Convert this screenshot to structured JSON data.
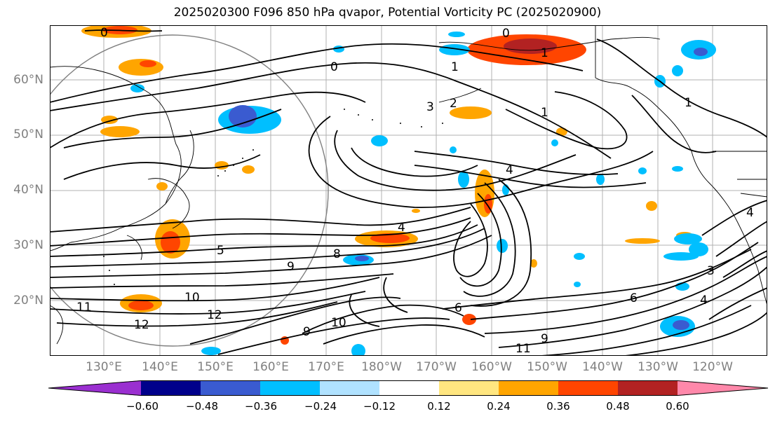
{
  "title": "2025020300 F096 850 hPa qvapor, Potential Vorticity PC (2025020900)",
  "lat_labels": [
    "60°N",
    "50°N",
    "40°N",
    "30°N",
    "20°N"
  ],
  "lon_labels": [
    "130°E",
    "140°E",
    "150°E",
    "160°E",
    "170°E",
    "180°W",
    "170°W",
    "160°W",
    "150°W",
    "140°W",
    "130°W",
    "120°W"
  ],
  "colorbar": {
    "ticks": [
      "−0.60",
      "−0.48",
      "−0.36",
      "−0.24",
      "−0.12",
      "0.12",
      "0.24",
      "0.36",
      "0.48",
      "0.60"
    ],
    "colors": [
      "#9a2fd0",
      "#00008b",
      "#3a5bd0",
      "#00bfff",
      "#b0e2ff",
      "#ffffff",
      "#ffe680",
      "#ffa500",
      "#ff4500",
      "#b22222",
      "#ff88aa"
    ]
  },
  "contour_labels": [
    "0",
    "0",
    "0",
    "1",
    "1",
    "1",
    "2",
    "3",
    "4",
    "4",
    "4",
    "5",
    "6",
    "6",
    "8",
    "9",
    "9",
    "10",
    "10",
    "11",
    "12",
    "12",
    "9",
    "11",
    "3",
    "4",
    "1"
  ]
}
